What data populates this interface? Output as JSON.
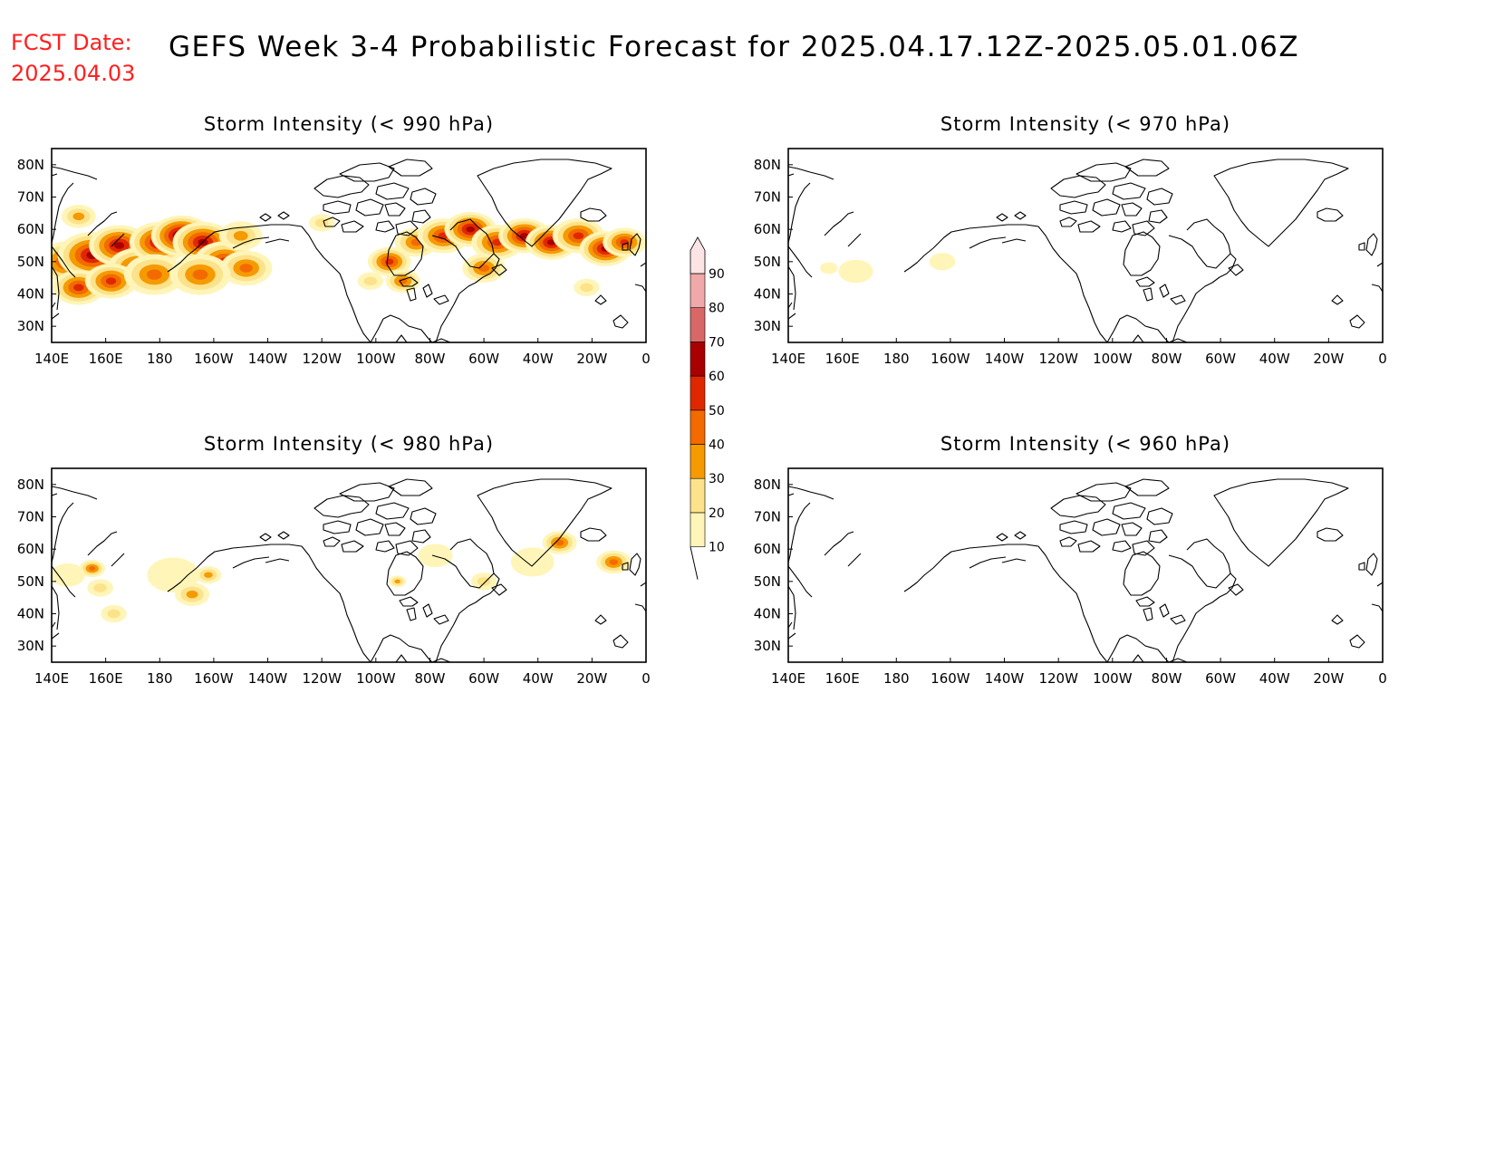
{
  "header": {
    "fcst_label": "FCST Date:",
    "fcst_date": "2025.04.03",
    "title": "GEFS Week 3-4 Probabilistic Forecast for 2025.04.17.12Z-2025.05.01.06Z"
  },
  "axes": {
    "x_ticks": [
      "140E",
      "160E",
      "180",
      "160W",
      "140W",
      "120W",
      "100W",
      "80W",
      "60W",
      "40W",
      "20W",
      "0"
    ],
    "y_ticks": [
      "80N",
      "70N",
      "60N",
      "50N",
      "40N",
      "30N"
    ],
    "lon_range": [
      140,
      360
    ],
    "lat_range": [
      25,
      85
    ]
  },
  "panels": [
    {
      "title": "Storm Intensity (< 990 hPa)"
    },
    {
      "title": "Storm Intensity (< 970 hPa)"
    },
    {
      "title": "Storm Intensity (< 980 hPa)"
    },
    {
      "title": "Storm Intensity (< 960 hPa)"
    }
  ],
  "colorbar": {
    "levels": [
      "10",
      "20",
      "30",
      "40",
      "50",
      "60",
      "70",
      "80",
      "90"
    ],
    "colors": [
      "#fff5b8",
      "#fce28a",
      "#f59a00",
      "#f26a00",
      "#e02800",
      "#a80000",
      "#d86868",
      "#f0a8a8",
      "#fde4e4"
    ]
  },
  "chart_data": {
    "type": "heatmap",
    "units": "probability (%)",
    "panels": [
      {
        "title": "Storm Intensity (< 990 hPa)",
        "blobs": [
          {
            "lon": 146,
            "lat": 50,
            "r": 7,
            "v": 55
          },
          {
            "lon": 155,
            "lat": 52,
            "r": 8,
            "v": 60
          },
          {
            "lon": 165,
            "lat": 55,
            "r": 7,
            "v": 65
          },
          {
            "lon": 172,
            "lat": 48,
            "r": 7,
            "v": 55
          },
          {
            "lon": 180,
            "lat": 56,
            "r": 7,
            "v": 60
          },
          {
            "lon": 188,
            "lat": 58,
            "r": 7,
            "v": 70
          },
          {
            "lon": 196,
            "lat": 56,
            "r": 7,
            "v": 65
          },
          {
            "lon": 204,
            "lat": 50,
            "r": 7,
            "v": 55
          },
          {
            "lon": 212,
            "lat": 48,
            "r": 6,
            "v": 45
          },
          {
            "lon": 150,
            "lat": 42,
            "r": 6,
            "v": 50
          },
          {
            "lon": 162,
            "lat": 44,
            "r": 6,
            "v": 55
          },
          {
            "lon": 178,
            "lat": 46,
            "r": 7,
            "v": 40
          },
          {
            "lon": 195,
            "lat": 46,
            "r": 7,
            "v": 45
          },
          {
            "lon": 210,
            "lat": 58,
            "r": 5,
            "v": 35
          },
          {
            "lon": 150,
            "lat": 64,
            "r": 4,
            "v": 30
          },
          {
            "lon": 265,
            "lat": 50,
            "r": 5,
            "v": 55
          },
          {
            "lon": 270,
            "lat": 44,
            "r": 4,
            "v": 40
          },
          {
            "lon": 275,
            "lat": 56,
            "r": 5,
            "v": 45
          },
          {
            "lon": 285,
            "lat": 58,
            "r": 6,
            "v": 50
          },
          {
            "lon": 295,
            "lat": 60,
            "r": 6,
            "v": 65
          },
          {
            "lon": 305,
            "lat": 56,
            "r": 6,
            "v": 55
          },
          {
            "lon": 315,
            "lat": 58,
            "r": 6,
            "v": 60
          },
          {
            "lon": 325,
            "lat": 56,
            "r": 6,
            "v": 60
          },
          {
            "lon": 335,
            "lat": 58,
            "r": 6,
            "v": 55
          },
          {
            "lon": 345,
            "lat": 54,
            "r": 6,
            "v": 65
          },
          {
            "lon": 352,
            "lat": 56,
            "r": 5,
            "v": 55
          },
          {
            "lon": 300,
            "lat": 48,
            "r": 5,
            "v": 40
          },
          {
            "lon": 338,
            "lat": 42,
            "r": 3,
            "v": 20
          },
          {
            "lon": 240,
            "lat": 62,
            "r": 3,
            "v": 25
          },
          {
            "lon": 258,
            "lat": 44,
            "r": 3,
            "v": 25
          }
        ]
      },
      {
        "title": "Storm Intensity (< 970 hPa)",
        "blobs": [
          {
            "lon": 165,
            "lat": 47,
            "r": 4,
            "v": 15
          },
          {
            "lon": 197,
            "lat": 50,
            "r": 3,
            "v": 15
          },
          {
            "lon": 155,
            "lat": 48,
            "r": 2,
            "v": 10
          }
        ]
      },
      {
        "title": "Storm Intensity (< 980 hPa)",
        "blobs": [
          {
            "lon": 155,
            "lat": 54,
            "r": 3,
            "v": 45
          },
          {
            "lon": 158,
            "lat": 48,
            "r": 3,
            "v": 20
          },
          {
            "lon": 163,
            "lat": 40,
            "r": 3,
            "v": 20
          },
          {
            "lon": 185,
            "lat": 52,
            "r": 6,
            "v": 15
          },
          {
            "lon": 192,
            "lat": 46,
            "r": 4,
            "v": 35
          },
          {
            "lon": 198,
            "lat": 52,
            "r": 3,
            "v": 30
          },
          {
            "lon": 146,
            "lat": 52,
            "r": 4,
            "v": 15
          },
          {
            "lon": 268,
            "lat": 50,
            "r": 2,
            "v": 35
          },
          {
            "lon": 282,
            "lat": 58,
            "r": 4,
            "v": 15
          },
          {
            "lon": 300,
            "lat": 50,
            "r": 3,
            "v": 20
          },
          {
            "lon": 328,
            "lat": 62,
            "r": 4,
            "v": 40
          },
          {
            "lon": 318,
            "lat": 56,
            "r": 5,
            "v": 15
          },
          {
            "lon": 348,
            "lat": 56,
            "r": 4,
            "v": 45
          }
        ]
      },
      {
        "title": "Storm Intensity (< 960 hPa)",
        "blobs": []
      }
    ]
  }
}
